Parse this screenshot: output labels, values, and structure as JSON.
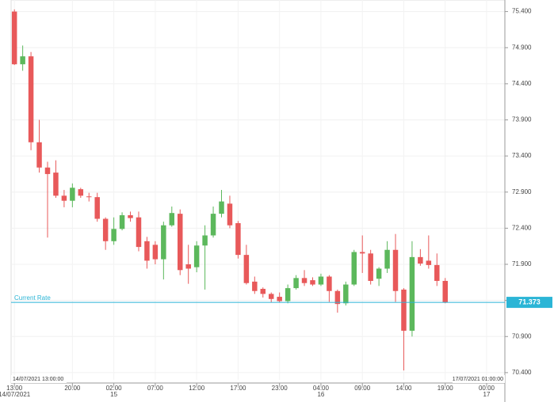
{
  "chart_data": {
    "type": "candlestick",
    "up_color": "#5cb85c",
    "down_color": "#e8595a",
    "grid": true,
    "open": [
      75.4,
      74.67,
      74.78,
      73.59,
      73.24,
      73.17,
      72.85,
      72.78,
      72.94,
      72.84,
      72.83,
      72.53,
      72.22,
      72.39,
      72.58,
      72.55,
      72.22,
      72.17,
      71.97,
      72.44,
      72.6,
      71.9,
      71.86,
      72.16,
      72.3,
      72.6,
      72.74,
      72.47,
      72.03,
      71.66,
      71.56,
      71.49,
      71.45,
      71.39,
      71.57,
      71.71,
      71.68,
      71.62,
      71.73,
      71.53,
      71.36,
      71.62,
      72.07,
      72.05,
      71.7,
      71.84,
      72.1,
      71.55,
      70.98,
      72.0,
      71.95,
      71.89,
      71.67
    ],
    "high": [
      75.43,
      74.93,
      74.84,
      73.9,
      73.32,
      73.34,
      72.93,
      73.02,
      72.96,
      72.89,
      72.89,
      72.55,
      72.55,
      72.62,
      72.63,
      72.63,
      72.28,
      72.22,
      72.49,
      72.7,
      72.66,
      72.17,
      72.22,
      72.44,
      72.7,
      72.93,
      72.85,
      72.5,
      72.17,
      71.73,
      71.58,
      71.51,
      71.51,
      71.62,
      71.75,
      71.82,
      71.72,
      71.77,
      71.75,
      71.55,
      71.66,
      72.1,
      72.3,
      72.1,
      71.86,
      72.22,
      72.32,
      71.57,
      72.22,
      72.11,
      72.3,
      72.05,
      71.71
    ],
    "low": [
      74.66,
      74.58,
      73.48,
      73.17,
      72.27,
      72.82,
      72.69,
      72.69,
      72.82,
      72.77,
      72.49,
      72.1,
      72.17,
      72.37,
      72.49,
      72.08,
      71.84,
      71.9,
      71.69,
      72.42,
      71.75,
      71.63,
      71.79,
      71.55,
      72.27,
      72.55,
      72.4,
      71.98,
      71.62,
      71.49,
      71.44,
      71.37,
      71.37,
      71.36,
      71.55,
      71.6,
      71.6,
      71.6,
      71.38,
      71.23,
      71.33,
      71.6,
      71.78,
      71.62,
      71.6,
      71.78,
      71.38,
      70.43,
      70.9,
      71.88,
      71.84,
      71.6,
      71.36
    ],
    "close": [
      74.67,
      74.78,
      73.59,
      73.24,
      73.15,
      72.85,
      72.78,
      72.96,
      72.85,
      72.83,
      72.53,
      72.22,
      72.39,
      72.58,
      72.54,
      72.14,
      71.95,
      71.97,
      72.44,
      72.61,
      71.82,
      71.84,
      72.16,
      72.3,
      72.6,
      72.77,
      72.44,
      72.03,
      71.64,
      71.53,
      71.49,
      71.42,
      71.39,
      71.57,
      71.71,
      71.64,
      71.62,
      71.73,
      71.53,
      71.35,
      71.62,
      72.07,
      72.05,
      71.67,
      71.84,
      72.1,
      71.53,
      70.98,
      72.0,
      71.91,
      71.89,
      71.67,
      71.373
    ],
    "xlim": [
      -0.4,
      59.2
    ],
    "xticks": [
      {
        "value": 0,
        "label": "13:00"
      },
      {
        "value": 7,
        "label": "20:00"
      },
      {
        "value": 12,
        "label": "02:00"
      },
      {
        "value": 17,
        "label": "07:00"
      },
      {
        "value": 22,
        "label": "12:00"
      },
      {
        "value": 27,
        "label": "17:00"
      },
      {
        "value": 32,
        "label": "23:00"
      },
      {
        "value": 37,
        "label": "04:00"
      },
      {
        "value": 42,
        "label": "09:00"
      },
      {
        "value": 47,
        "label": "14:00"
      },
      {
        "value": 52,
        "label": "19:00"
      },
      {
        "value": 57,
        "label": "00:00"
      }
    ],
    "day_ticks": [
      {
        "value": 0,
        "label": "14/07/2021"
      },
      {
        "value": 12,
        "label": "15"
      },
      {
        "value": 37,
        "label": "16"
      },
      {
        "value": 57,
        "label": "17"
      }
    ],
    "ylim": [
      70.3,
      75.56
    ],
    "yticks": [
      {
        "value": 70.4,
        "label": "70.400"
      },
      {
        "value": 70.9,
        "label": "70.900"
      },
      {
        "value": 71.4,
        "label": "71.400"
      },
      {
        "value": 71.9,
        "label": "71.900"
      },
      {
        "value": 72.4,
        "label": "72.400"
      },
      {
        "value": 72.9,
        "label": "72.900"
      },
      {
        "value": 73.4,
        "label": "73.400"
      },
      {
        "value": 73.9,
        "label": "73.900"
      },
      {
        "value": 74.4,
        "label": "74.400"
      },
      {
        "value": 74.9,
        "label": "74.900"
      },
      {
        "value": 75.4,
        "label": "75.400"
      }
    ],
    "current_rate": {
      "label": "Current Rate",
      "value": 71.373,
      "value_label": "71.373",
      "color": "#2bb5d6"
    },
    "start_label": "14/07/2021 13:00:00",
    "end_label": "17/07/2021 01:00:00"
  }
}
